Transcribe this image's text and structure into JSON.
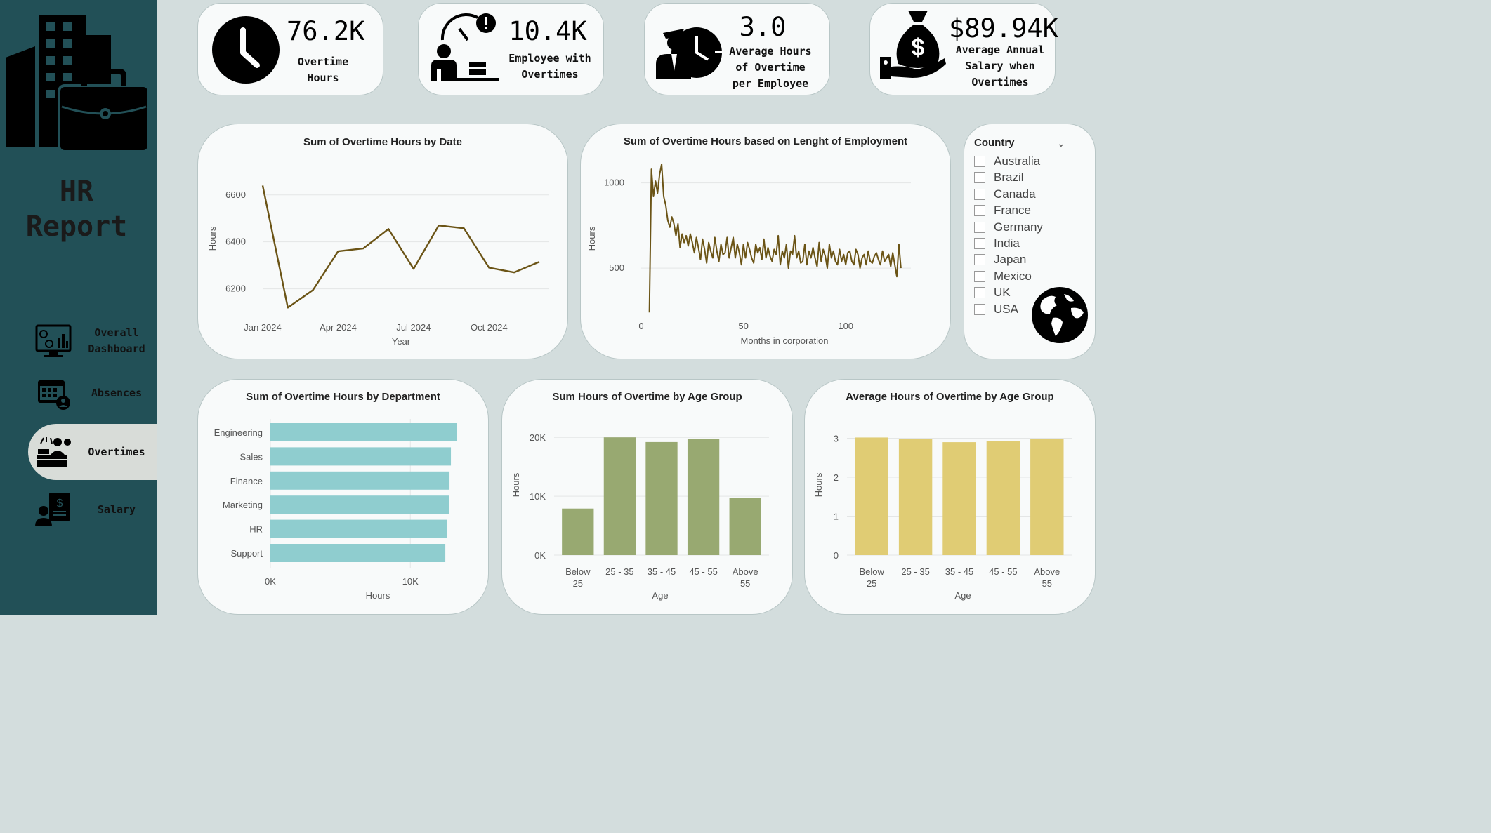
{
  "sidebar": {
    "title": "HR\nReport",
    "nav": [
      {
        "label": "Overall\nDashboard",
        "icon": "dashboard-monitor-icon"
      },
      {
        "label": "Absences",
        "icon": "calendar-person-icon"
      },
      {
        "label": "Overtimes",
        "icon": "overtime-worker-icon",
        "active": true
      },
      {
        "label": "Salary",
        "icon": "salary-document-icon"
      }
    ]
  },
  "kpis": [
    {
      "value": "76.2K",
      "label": "Overtime\nHours",
      "icon": "clock-icon"
    },
    {
      "value": "10.4K",
      "label": "Employee with\nOvertimes",
      "icon": "employee-alert-icon"
    },
    {
      "value": "3.0",
      "label": "Average Hours\nof Overtime\nper Employee",
      "icon": "employee-clock-icon"
    },
    {
      "value": "$89.94K",
      "label": "Average Annual\nSalary when\nOvertimes",
      "icon": "money-bag-hand-icon"
    }
  ],
  "country_slicer": {
    "title": "Country",
    "options": [
      "Australia",
      "Brazil",
      "Canada",
      "France",
      "Germany",
      "India",
      "Japan",
      "Mexico",
      "UK",
      "USA"
    ]
  },
  "colors": {
    "sidebar": "#225057",
    "background": "#d3dddd",
    "line": "#6b5416",
    "department_bar": "#8fcdcf",
    "age_sum_bar": "#98a971",
    "age_avg_bar": "#e0cc74"
  },
  "chart_data": [
    {
      "type": "line",
      "title": "Sum of Overtime Hours by Date",
      "xlabel": "Year",
      "ylabel": "Hours",
      "x_ticks": [
        "Jan 2024",
        "Apr 2024",
        "Jul 2024",
        "Oct 2024"
      ],
      "y_ticks": [
        6200,
        6400,
        6600
      ],
      "ylim": [
        6130,
        6680
      ],
      "x": [
        "2024-01",
        "2024-02",
        "2024-03",
        "2024-04",
        "2024-05",
        "2024-06",
        "2024-07",
        "2024-08",
        "2024-09",
        "2024-10",
        "2024-11",
        "2024-12"
      ],
      "values": [
        6640,
        6120,
        6195,
        6360,
        6372,
        6455,
        6285,
        6470,
        6458,
        6290,
        6270,
        6315
      ]
    },
    {
      "type": "line",
      "title": "Sum of Overtime Hours based on Lenght of Employment",
      "xlabel": "Months in corporation",
      "ylabel": "Hours",
      "x_ticks": [
        0,
        50,
        100
      ],
      "y_ticks": [
        500,
        1000
      ],
      "xlim": [
        0,
        125
      ],
      "ylim": [
        200,
        1130
      ],
      "x": [
        4,
        5,
        6,
        7,
        8,
        9,
        10,
        11,
        12,
        13,
        14,
        15,
        16,
        17,
        18,
        19,
        20,
        21,
        22,
        23,
        24,
        25,
        26,
        27,
        28,
        29,
        30,
        31,
        32,
        33,
        34,
        35,
        36,
        37,
        38,
        39,
        40,
        41,
        42,
        43,
        44,
        45,
        46,
        47,
        48,
        49,
        50,
        51,
        52,
        53,
        54,
        55,
        56,
        57,
        58,
        59,
        60,
        61,
        62,
        63,
        64,
        65,
        66,
        67,
        68,
        69,
        70,
        71,
        72,
        73,
        74,
        75,
        76,
        77,
        78,
        79,
        80,
        81,
        82,
        83,
        84,
        85,
        86,
        87,
        88,
        89,
        90,
        91,
        92,
        93,
        94,
        95,
        96,
        97,
        98,
        99,
        100,
        101,
        102,
        103,
        104,
        105,
        106,
        107,
        108,
        109,
        110,
        111,
        112,
        113,
        114,
        115,
        116,
        117,
        118,
        119,
        120,
        121,
        122,
        123,
        124,
        125,
        126,
        127
      ],
      "values": [
        240,
        1080,
        920,
        1010,
        940,
        1050,
        1110,
        920,
        870,
        780,
        740,
        800,
        760,
        690,
        760,
        620,
        700,
        650,
        690,
        630,
        700,
        650,
        590,
        680,
        620,
        550,
        670,
        610,
        530,
        650,
        600,
        560,
        680,
        600,
        540,
        640,
        580,
        590,
        680,
        560,
        620,
        680,
        560,
        640,
        590,
        520,
        640,
        560,
        650,
        610,
        560,
        530,
        640,
        590,
        620,
        550,
        670,
        560,
        620,
        570,
        540,
        610,
        580,
        690,
        520,
        600,
        560,
        640,
        500,
        600,
        580,
        690,
        560,
        600,
        530,
        540,
        640,
        520,
        600,
        560,
        620,
        560,
        510,
        650,
        540,
        610,
        570,
        500,
        640,
        560,
        600,
        540,
        520,
        610,
        540,
        580,
        520,
        590,
        600,
        540,
        520,
        610,
        580,
        500,
        560,
        580,
        520,
        600,
        540,
        530,
        570,
        590,
        550,
        520,
        600,
        540,
        560,
        580,
        510,
        590,
        520,
        450,
        640,
        500
      ]
    },
    {
      "type": "bar",
      "orientation": "horizontal",
      "title": "Sum of Overtime Hours by Department",
      "xlabel": "Hours",
      "categories": [
        "Engineering",
        "Sales",
        "Finance",
        "Marketing",
        "HR",
        "Support"
      ],
      "values": [
        13300,
        12900,
        12800,
        12750,
        12600,
        12500
      ],
      "x_ticks": [
        "0K",
        "10K"
      ],
      "xlim": [
        0,
        13500
      ]
    },
    {
      "type": "bar",
      "title": "Sum Hours of Overtime by Age Group",
      "xlabel": "Age",
      "ylabel": "Hours",
      "categories": [
        "Below\n25",
        "25 - 35",
        "35 - 45",
        "45 - 55",
        "Above\n55"
      ],
      "values": [
        7900,
        20000,
        19200,
        19700,
        9700
      ],
      "y_ticks": [
        "0K",
        "10K",
        "20K"
      ],
      "ylim": [
        0,
        20500
      ]
    },
    {
      "type": "bar",
      "title": "Average Hours of Overtime by Age Group",
      "xlabel": "Age",
      "ylabel": "Hours",
      "categories": [
        "Below\n25",
        "25 - 35",
        "35 - 45",
        "45 - 55",
        "Above\n55"
      ],
      "values": [
        3.02,
        2.99,
        2.9,
        2.93,
        2.99
      ],
      "y_ticks": [
        "0",
        "1",
        "2",
        "3"
      ],
      "ylim": [
        0,
        3.1
      ]
    }
  ]
}
